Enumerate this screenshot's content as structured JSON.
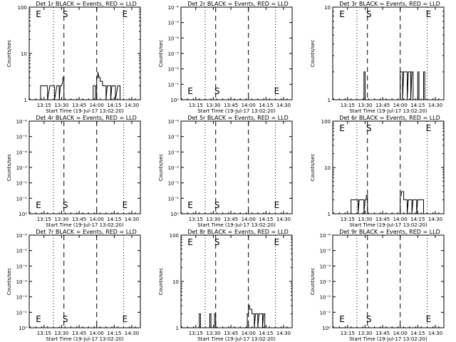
{
  "chart_data": [
    {
      "type": "line",
      "title": "Det 1r BLACK = Events, RED = LLD",
      "ylabel": "Counts/sec",
      "xlabel": "Start Time (19-Jul-17 13:02:20)",
      "yscale": "log",
      "ylim": [
        1,
        100
      ],
      "yticks": [
        "1",
        "10",
        "100"
      ],
      "xticks": [
        "13:15",
        "13:30",
        "13:45",
        "14:00",
        "14:15",
        "14:30"
      ],
      "markers": [
        {
          "label": "E",
          "time": "13:08"
        },
        {
          "label": "S",
          "time": "13:32"
        },
        {
          "label": "E",
          "time": "14:23"
        }
      ],
      "dotted_lines": [
        "13:23",
        "14:23"
      ],
      "dashed_lines": [
        "13:32",
        "14:00"
      ],
      "series": [
        {
          "color": "#000000",
          "points": [
            [
              "13:08",
              1
            ],
            [
              "13:12",
              1
            ],
            [
              "13:12",
              2
            ],
            [
              "13:18",
              2
            ],
            [
              "13:18",
              1
            ],
            [
              "13:20",
              2
            ],
            [
              "13:24",
              2
            ],
            [
              "13:24",
              1
            ],
            [
              "13:26",
              2
            ],
            [
              "13:28",
              2
            ],
            [
              "13:28",
              1
            ],
            [
              "13:29",
              2
            ],
            [
              "13:30",
              2
            ],
            [
              "13:31",
              2.5
            ],
            [
              "13:31",
              3
            ],
            [
              "13:32",
              3
            ],
            [
              "13:32",
              1
            ],
            [
              "13:46",
              1
            ],
            [
              "13:57",
              1
            ],
            [
              "13:57",
              2
            ],
            [
              "13:59",
              2
            ],
            [
              "13:59",
              1
            ],
            [
              "14:00",
              1
            ],
            [
              "14:00",
              3
            ],
            [
              "14:01",
              3
            ],
            [
              "14:01",
              4
            ],
            [
              "14:02",
              3
            ],
            [
              "14:03",
              3
            ],
            [
              "14:03",
              2.5
            ],
            [
              "14:05",
              2.5
            ],
            [
              "14:05",
              2
            ],
            [
              "14:08",
              2
            ],
            [
              "14:08",
              1
            ],
            [
              "14:09",
              2
            ],
            [
              "14:12",
              2
            ],
            [
              "14:12",
              1
            ],
            [
              "14:13",
              2
            ],
            [
              "14:16",
              2
            ],
            [
              "14:16",
              1
            ],
            [
              "14:18",
              2
            ],
            [
              "14:20",
              2
            ],
            [
              "14:20",
              1
            ]
          ]
        }
      ]
    },
    {
      "type": "line",
      "title": "Det 2r BLACK = Events, RED = LLD",
      "ylabel": "Counts/sec",
      "xlabel": "Start Time (19-Jul-17 13:02:20)",
      "yscale": "log",
      "ylim": [
        1,
        1e-06
      ],
      "yticks": [
        "10⁰",
        "10⁻¹",
        "10⁻²",
        "10⁻³",
        "10⁻⁴",
        "10⁻⁵",
        "10⁻⁶"
      ],
      "xticks": [
        "13:15",
        "13:30",
        "13:45",
        "14:00",
        "14:15",
        "14:30"
      ],
      "markers": [
        {
          "label": "E",
          "time": "13:08"
        },
        {
          "label": "S",
          "time": "13:32"
        },
        {
          "label": "E",
          "time": "14:23"
        }
      ],
      "dotted_lines": [
        "13:23",
        "14:23"
      ],
      "dashed_lines": [
        "13:32",
        "14:00"
      ],
      "series": []
    },
    {
      "type": "line",
      "title": "Det 3r BLACK = Events, RED = LLD",
      "ylabel": "Counts/sec",
      "xlabel": "Start Time (19-Jul-17 13:02:20)",
      "yscale": "log",
      "ylim": [
        1,
        10
      ],
      "yticks": [
        "1",
        "10"
      ],
      "xticks": [
        "13:15",
        "13:30",
        "13:45",
        "14:00",
        "14:15",
        "14:30"
      ],
      "markers": [
        {
          "label": "E",
          "time": "13:08"
        },
        {
          "label": "S",
          "time": "13:32"
        },
        {
          "label": "E",
          "time": "14:23"
        }
      ],
      "dotted_lines": [
        "13:23",
        "14:23"
      ],
      "dashed_lines": [
        "13:32",
        "14:00"
      ],
      "series": [
        {
          "color": "#000000",
          "points": [
            [
              "13:08",
              1
            ],
            [
              "13:29",
              1
            ],
            [
              "13:29",
              2
            ],
            [
              "13:30",
              2
            ],
            [
              "13:30",
              1
            ],
            [
              "14:00",
              1
            ],
            [
              "14:00",
              2
            ],
            [
              "14:02",
              2
            ],
            [
              "14:02",
              1
            ],
            [
              "14:03",
              2
            ],
            [
              "14:06",
              2
            ],
            [
              "14:06",
              1
            ],
            [
              "14:07",
              2
            ],
            [
              "14:09",
              2
            ],
            [
              "14:09",
              1
            ],
            [
              "14:10",
              2
            ],
            [
              "14:11",
              2
            ],
            [
              "14:11",
              1
            ],
            [
              "14:15",
              1
            ],
            [
              "14:15",
              2
            ],
            [
              "14:16",
              2
            ],
            [
              "14:16",
              1
            ],
            [
              "14:20",
              1
            ],
            [
              "14:20",
              2
            ],
            [
              "14:21",
              2
            ],
            [
              "14:21",
              1
            ]
          ]
        }
      ]
    },
    {
      "type": "line",
      "title": "Det 4r BLACK = Events, RED = LLD",
      "ylabel": "Counts/sec",
      "xlabel": "Start Time (19-Jul-17 13:02:20)",
      "yscale": "log",
      "ylim": [
        1,
        1e-06
      ],
      "yticks": [
        "10⁰",
        "10⁻¹",
        "10⁻²",
        "10⁻³",
        "10⁻⁴",
        "10⁻⁵",
        "10⁻⁶"
      ],
      "xticks": [
        "13:15",
        "13:30",
        "13:45",
        "14:00",
        "14:15",
        "14:30"
      ],
      "markers": [
        {
          "label": "E",
          "time": "13:08"
        },
        {
          "label": "S",
          "time": "13:32"
        },
        {
          "label": "E",
          "time": "14:23"
        }
      ],
      "dotted_lines": [
        "13:23",
        "14:23"
      ],
      "dashed_lines": [
        "13:32",
        "14:00"
      ],
      "series": []
    },
    {
      "type": "line",
      "title": "Det 5r BLACK = Events, RED = LLD",
      "ylabel": "Counts/sec",
      "xlabel": "Start Time (19-Jul-17 13:02:20)",
      "yscale": "log",
      "ylim": [
        1,
        1e-06
      ],
      "yticks": [
        "10⁰",
        "10⁻¹",
        "10⁻²",
        "10⁻³",
        "10⁻⁴",
        "10⁻⁵",
        "10⁻⁶"
      ],
      "xticks": [
        "13:15",
        "13:30",
        "13:45",
        "14:00",
        "14:15",
        "14:30"
      ],
      "markers": [
        {
          "label": "E",
          "time": "13:08"
        },
        {
          "label": "S",
          "time": "13:32"
        },
        {
          "label": "E",
          "time": "14:23"
        }
      ],
      "dotted_lines": [
        "13:23",
        "14:23"
      ],
      "dashed_lines": [
        "13:32",
        "14:00"
      ],
      "series": []
    },
    {
      "type": "line",
      "title": "Det 6r BLACK = Events, RED = LLD",
      "ylabel": "Counts/sec",
      "xlabel": "Start Time (19-Jul-17 13:02:20)",
      "yscale": "log",
      "ylim": [
        1,
        100
      ],
      "yticks": [
        "1",
        "10",
        "100"
      ],
      "xticks": [
        "13:15",
        "13:30",
        "13:45",
        "14:00",
        "14:15",
        "14:30"
      ],
      "markers": [
        {
          "label": "E",
          "time": "13:08"
        },
        {
          "label": "S",
          "time": "13:32"
        },
        {
          "label": "E",
          "time": "14:23"
        }
      ],
      "dotted_lines": [
        "13:23",
        "14:23"
      ],
      "dashed_lines": [
        "13:32",
        "14:00"
      ],
      "series": [
        {
          "color": "#000000",
          "points": [
            [
              "13:08",
              1
            ],
            [
              "13:18",
              1
            ],
            [
              "13:18",
              2
            ],
            [
              "13:24",
              2
            ],
            [
              "13:24",
              1
            ],
            [
              "13:25",
              2
            ],
            [
              "13:29",
              2
            ],
            [
              "13:29",
              1
            ],
            [
              "13:30",
              2
            ],
            [
              "13:31",
              2
            ],
            [
              "13:31",
              2.5
            ],
            [
              "13:32",
              2.5
            ],
            [
              "13:32",
              1
            ],
            [
              "14:00",
              1
            ],
            [
              "14:00",
              2.5
            ],
            [
              "14:01",
              2.5
            ],
            [
              "14:01",
              3
            ],
            [
              "14:03",
              3
            ],
            [
              "14:03",
              2
            ],
            [
              "14:06",
              2
            ],
            [
              "14:06",
              1
            ],
            [
              "14:07",
              2
            ],
            [
              "14:10",
              2
            ],
            [
              "14:10",
              1
            ],
            [
              "14:11",
              2
            ],
            [
              "14:14",
              2
            ],
            [
              "14:14",
              1
            ],
            [
              "14:15",
              2
            ],
            [
              "14:20",
              2
            ],
            [
              "14:20",
              1
            ]
          ]
        }
      ]
    },
    {
      "type": "line",
      "title": "Det 7r BLACK = Events, RED = LLD",
      "ylabel": "Counts/sec",
      "xlabel": "Start Time (19-Jul-17 13:02:20)",
      "yscale": "log",
      "ylim": [
        1,
        1e-06
      ],
      "yticks": [
        "10⁰",
        "10⁻¹",
        "10⁻²",
        "10⁻³",
        "10⁻⁴",
        "10⁻⁵",
        "10⁻⁶"
      ],
      "xticks": [
        "13:15",
        "13:30",
        "13:45",
        "14:00",
        "14:15",
        "14:30"
      ],
      "markers": [
        {
          "label": "E",
          "time": "13:08"
        },
        {
          "label": "S",
          "time": "13:32"
        },
        {
          "label": "E",
          "time": "14:23"
        }
      ],
      "dotted_lines": [
        "13:23",
        "14:23"
      ],
      "dashed_lines": [
        "13:32",
        "14:00"
      ],
      "series": []
    },
    {
      "type": "line",
      "title": "Det 8r BLACK = Events, RED = LLD",
      "ylabel": "Counts/sec",
      "xlabel": "Start Time (19-Jul-17 13:02:20)",
      "yscale": "log",
      "ylim": [
        1,
        100
      ],
      "yticks": [
        "1",
        "10",
        "100"
      ],
      "xticks": [
        "13:15",
        "13:30",
        "13:45",
        "14:00",
        "14:15",
        "14:30"
      ],
      "markers": [
        {
          "label": "E",
          "time": "13:08"
        },
        {
          "label": "S",
          "time": "13:32"
        },
        {
          "label": "E",
          "time": "14:23"
        }
      ],
      "dotted_lines": [
        "13:23",
        "14:23"
      ],
      "dashed_lines": [
        "13:32",
        "14:00"
      ],
      "series": [
        {
          "color": "#000000",
          "points": [
            [
              "13:08",
              1
            ],
            [
              "13:18",
              1
            ],
            [
              "13:18",
              2
            ],
            [
              "13:19",
              2
            ],
            [
              "13:19",
              1
            ],
            [
              "13:27",
              1
            ],
            [
              "13:27",
              2
            ],
            [
              "13:28",
              2
            ],
            [
              "13:28",
              1
            ],
            [
              "13:31",
              1
            ],
            [
              "13:31",
              2
            ],
            [
              "13:32",
              2
            ],
            [
              "13:32",
              1
            ],
            [
              "13:59",
              1
            ],
            [
              "13:59",
              2
            ],
            [
              "14:00",
              2
            ],
            [
              "14:00",
              3
            ],
            [
              "14:01",
              3
            ],
            [
              "14:01",
              2.5
            ],
            [
              "14:03",
              2.5
            ],
            [
              "14:03",
              2
            ],
            [
              "14:05",
              2
            ],
            [
              "14:05",
              1
            ],
            [
              "14:06",
              2
            ],
            [
              "14:08",
              2
            ],
            [
              "14:08",
              1
            ],
            [
              "14:09",
              2
            ],
            [
              "14:12",
              2
            ],
            [
              "14:12",
              1
            ],
            [
              "14:13",
              2
            ],
            [
              "14:14",
              2
            ],
            [
              "14:14",
              1
            ]
          ]
        }
      ]
    },
    {
      "type": "line",
      "title": "Det 9r BLACK = Events, RED = LLD",
      "ylabel": "Counts/sec",
      "xlabel": "Start Time (19-Jul-17 13:02:20)",
      "yscale": "log",
      "ylim": [
        1,
        1e-06
      ],
      "yticks": [
        "10⁰",
        "10⁻¹",
        "10⁻²",
        "10⁻³",
        "10⁻⁴",
        "10⁻⁵",
        "10⁻⁶"
      ],
      "xticks": [
        "13:15",
        "13:30",
        "13:45",
        "14:00",
        "14:15",
        "14:30"
      ],
      "markers": [
        {
          "label": "E",
          "time": "13:08"
        },
        {
          "label": "S",
          "time": "13:32"
        },
        {
          "label": "E",
          "time": "14:23"
        }
      ],
      "dotted_lines": [
        "13:23",
        "14:23"
      ],
      "dashed_lines": [
        "13:32",
        "14:00"
      ],
      "series": []
    }
  ]
}
